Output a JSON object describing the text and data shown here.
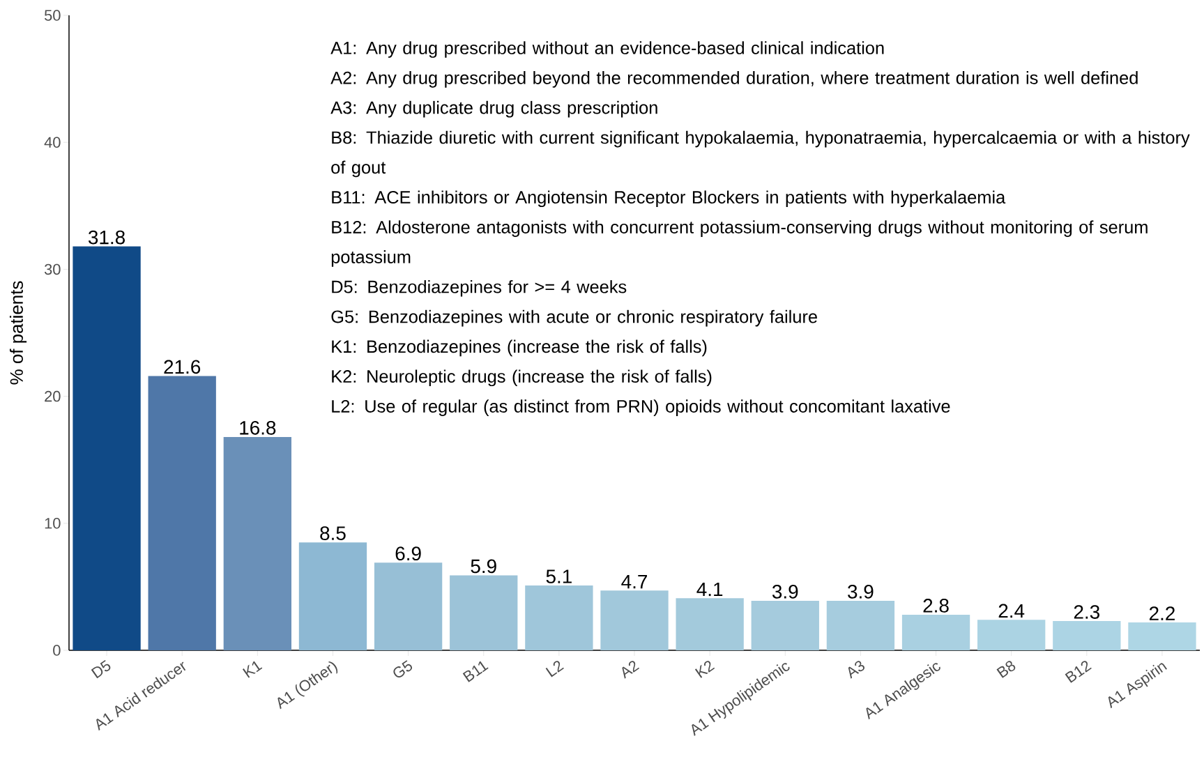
{
  "chart_data": {
    "type": "bar",
    "ylabel": "% of patients",
    "categories": [
      "D5",
      "A1 Acid reducer",
      "K1",
      "A1 (Other)",
      "G5",
      "B11",
      "L2",
      "A2",
      "K2",
      "A1 Hypolipidemic",
      "A3",
      "A1 Analgesic",
      "B8",
      "B12",
      "A1 Aspirin"
    ],
    "values": [
      31.8,
      21.6,
      16.8,
      8.5,
      6.9,
      5.9,
      5.1,
      4.7,
      4.1,
      3.9,
      3.9,
      2.8,
      2.4,
      2.3,
      2.2
    ],
    "value_labels": [
      "31.8",
      "21.6",
      "16.8",
      "8.5",
      "6.9",
      "5.9",
      "5.1",
      "4.7",
      "4.1",
      "3.9",
      "3.9",
      "2.8",
      "2.4",
      "2.3",
      "2.2"
    ],
    "colors": [
      "#104a87",
      "#4f77a8",
      "#6a90b8",
      "#8db8d3",
      "#97bfd6",
      "#9cc3d8",
      "#9fc6da",
      "#a1c8db",
      "#a3cadc",
      "#a5cbdd",
      "#a6ccde",
      "#a9d0e1",
      "#abd3e3",
      "#acd4e4",
      "#aed6e5"
    ],
    "ylim": [
      0,
      50
    ],
    "yticks": [
      0,
      10,
      20,
      30,
      40,
      50
    ],
    "grid": false,
    "annotations": [
      "A1: Any drug prescribed without an evidence-based clinical indication",
      "A2: Any drug prescribed beyond the recommended duration, where treatment duration is well defined",
      "A3: Any duplicate drug class prescription",
      "B8: Thiazide diuretic with current significant hypokalaemia, hyponatraemia, hypercalcaemia or with a history of gout",
      "B11: ACE inhibitors or Angiotensin Receptor Blockers in patients with hyperkalaemia",
      "B12: Aldosterone antagonists with concurrent potassium-conserving drugs without monitoring of serum potassium",
      "D5: Benzodiazepines for >= 4 weeks",
      "G5: Benzodiazepines with acute or chronic respiratory failure",
      "K1: Benzodiazepines (increase the risk of falls)",
      "K2: Neuroleptic drugs (increase the risk of falls)",
      "L2: Use of regular (as distinct from PRN) opioids without concomitant laxative"
    ]
  }
}
